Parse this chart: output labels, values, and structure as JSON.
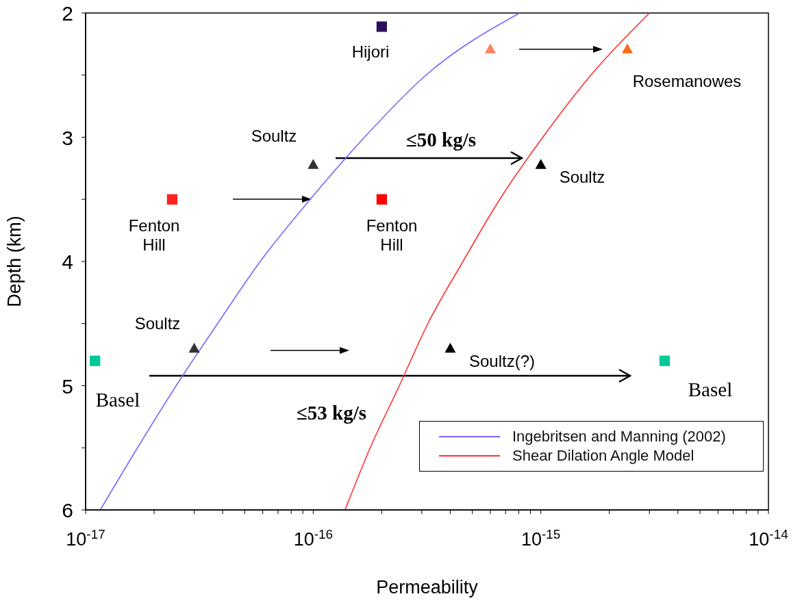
{
  "chart_data": {
    "type": "scatter",
    "xlabel": "Permeability",
    "ylabel": "Depth (km)",
    "log": "x",
    "legend": "bottom right",
    "xlim": [
      1e-17,
      1e-14
    ],
    "ylim": [
      6,
      2
    ],
    "xticks": [
      {
        "value": 1e-17,
        "label": "10$^{-17}$"
      },
      {
        "value": 2e-17,
        "label": null
      },
      {
        "value": 3e-17,
        "label": null
      },
      {
        "value": 4e-17,
        "label": null
      },
      {
        "value": 5e-17,
        "label": null
      },
      {
        "value": 6e-17,
        "label": null
      },
      {
        "value": 7e-17,
        "label": null
      },
      {
        "value": 8e-17,
        "label": null
      },
      {
        "value": 9e-17,
        "label": null
      },
      {
        "value": 1e-16,
        "label": "10$^{-16}$"
      },
      {
        "value": 2e-16,
        "label": null
      },
      {
        "value": 3e-16,
        "label": null
      },
      {
        "value": 4e-16,
        "label": null
      },
      {
        "value": 5e-16,
        "label": null
      },
      {
        "value": 6e-16,
        "label": null
      },
      {
        "value": 7e-16,
        "label": null
      },
      {
        "value": 8e-16,
        "label": null
      },
      {
        "value": 9e-16,
        "label": null
      },
      {
        "value": 1e-15,
        "label": "10$^{-15}$"
      },
      {
        "value": 2e-15,
        "label": null
      },
      {
        "value": 3e-15,
        "label": null
      },
      {
        "value": 4e-15,
        "label": null
      },
      {
        "value": 5e-15,
        "label": null
      },
      {
        "value": 6e-15,
        "label": null
      },
      {
        "value": 7e-15,
        "label": null
      },
      {
        "value": 8e-15,
        "label": null
      },
      {
        "value": 9e-15,
        "label": null
      },
      {
        "value": 1e-14,
        "label": "10$^{-14}$"
      }
    ],
    "yticks": [
      2,
      {
        "value": 2.5,
        "label": null
      },
      3,
      {
        "value": 3.5,
        "label": null
      },
      4,
      {
        "value": 4.5,
        "label": null
      },
      5,
      {
        "value": 5.5,
        "label": null
      },
      6
    ],
    "series": [
      {
        "type": "line",
        "name": "Ingebritsen and Manning (2002)",
        "color": "#8060ff",
        "x": [
          1.16e-17,
          1.69e-17,
          2.5e-17,
          3.8e-17,
          5.85e-17,
          9.7e-17,
          1.68e-16,
          3.13e-16,
          8.07e-16
        ],
        "values": [
          6,
          5.5,
          5,
          4.5,
          4,
          3.5,
          3,
          2.5,
          2
        ]
      },
      {
        "type": "line",
        "name": "Shear Dilation Angle Model",
        "color": "#ff3030",
        "x": [
          1.38e-16,
          1.78e-16,
          2.39e-16,
          3.19e-16,
          4.55e-16,
          6.6e-16,
          1.02e-15,
          1.66e-15,
          3e-15
        ],
        "values": [
          6,
          5.5,
          5,
          4.5,
          4,
          3.5,
          3,
          2.5,
          2
        ]
      },
      {
        "marker": "square",
        "color": "#2d0f5e",
        "x": [
          2e-16
        ],
        "values": [
          2.11
        ]
      },
      {
        "marker": "triangle",
        "color": "#ff8060",
        "x": [
          6e-16
        ],
        "values": [
          2.29
        ]
      },
      {
        "marker": "triangle",
        "color": "#ff6a1a",
        "x": [
          2.4e-15
        ],
        "values": [
          2.29
        ]
      },
      {
        "marker": "triangle",
        "color": "#333333",
        "x": [
          1e-16,
          3e-17
        ],
        "values": [
          3.22,
          4.7
        ]
      },
      {
        "marker": "triangle",
        "color": "#000000",
        "x": [
          1e-15,
          4e-16
        ],
        "values": [
          3.22,
          4.7
        ]
      },
      {
        "marker": "square",
        "color": "#ff2020",
        "x": [
          2.4e-17
        ],
        "values": [
          3.5
        ]
      },
      {
        "marker": "square",
        "color": "#ff0000",
        "x": [
          2e-16
        ],
        "values": [
          3.5
        ]
      },
      {
        "marker": "square",
        "color": "#00c896",
        "x": [
          1.1e-17
        ],
        "values": [
          4.8
        ]
      },
      {
        "marker": "square",
        "color": "#00c896",
        "x": [
          3.5e-15
        ],
        "values": [
          4.8
        ]
      }
    ],
    "annotations": [
      "Hijori",
      "Rosemanowes",
      "Soultz",
      "Soultz",
      "Fenton\nHill",
      "Fenton\nHill",
      "Soultz",
      "Soultz(?)",
      "≤50 kg/s",
      "≤53 kg/s",
      "Basel",
      "Basel"
    ]
  }
}
